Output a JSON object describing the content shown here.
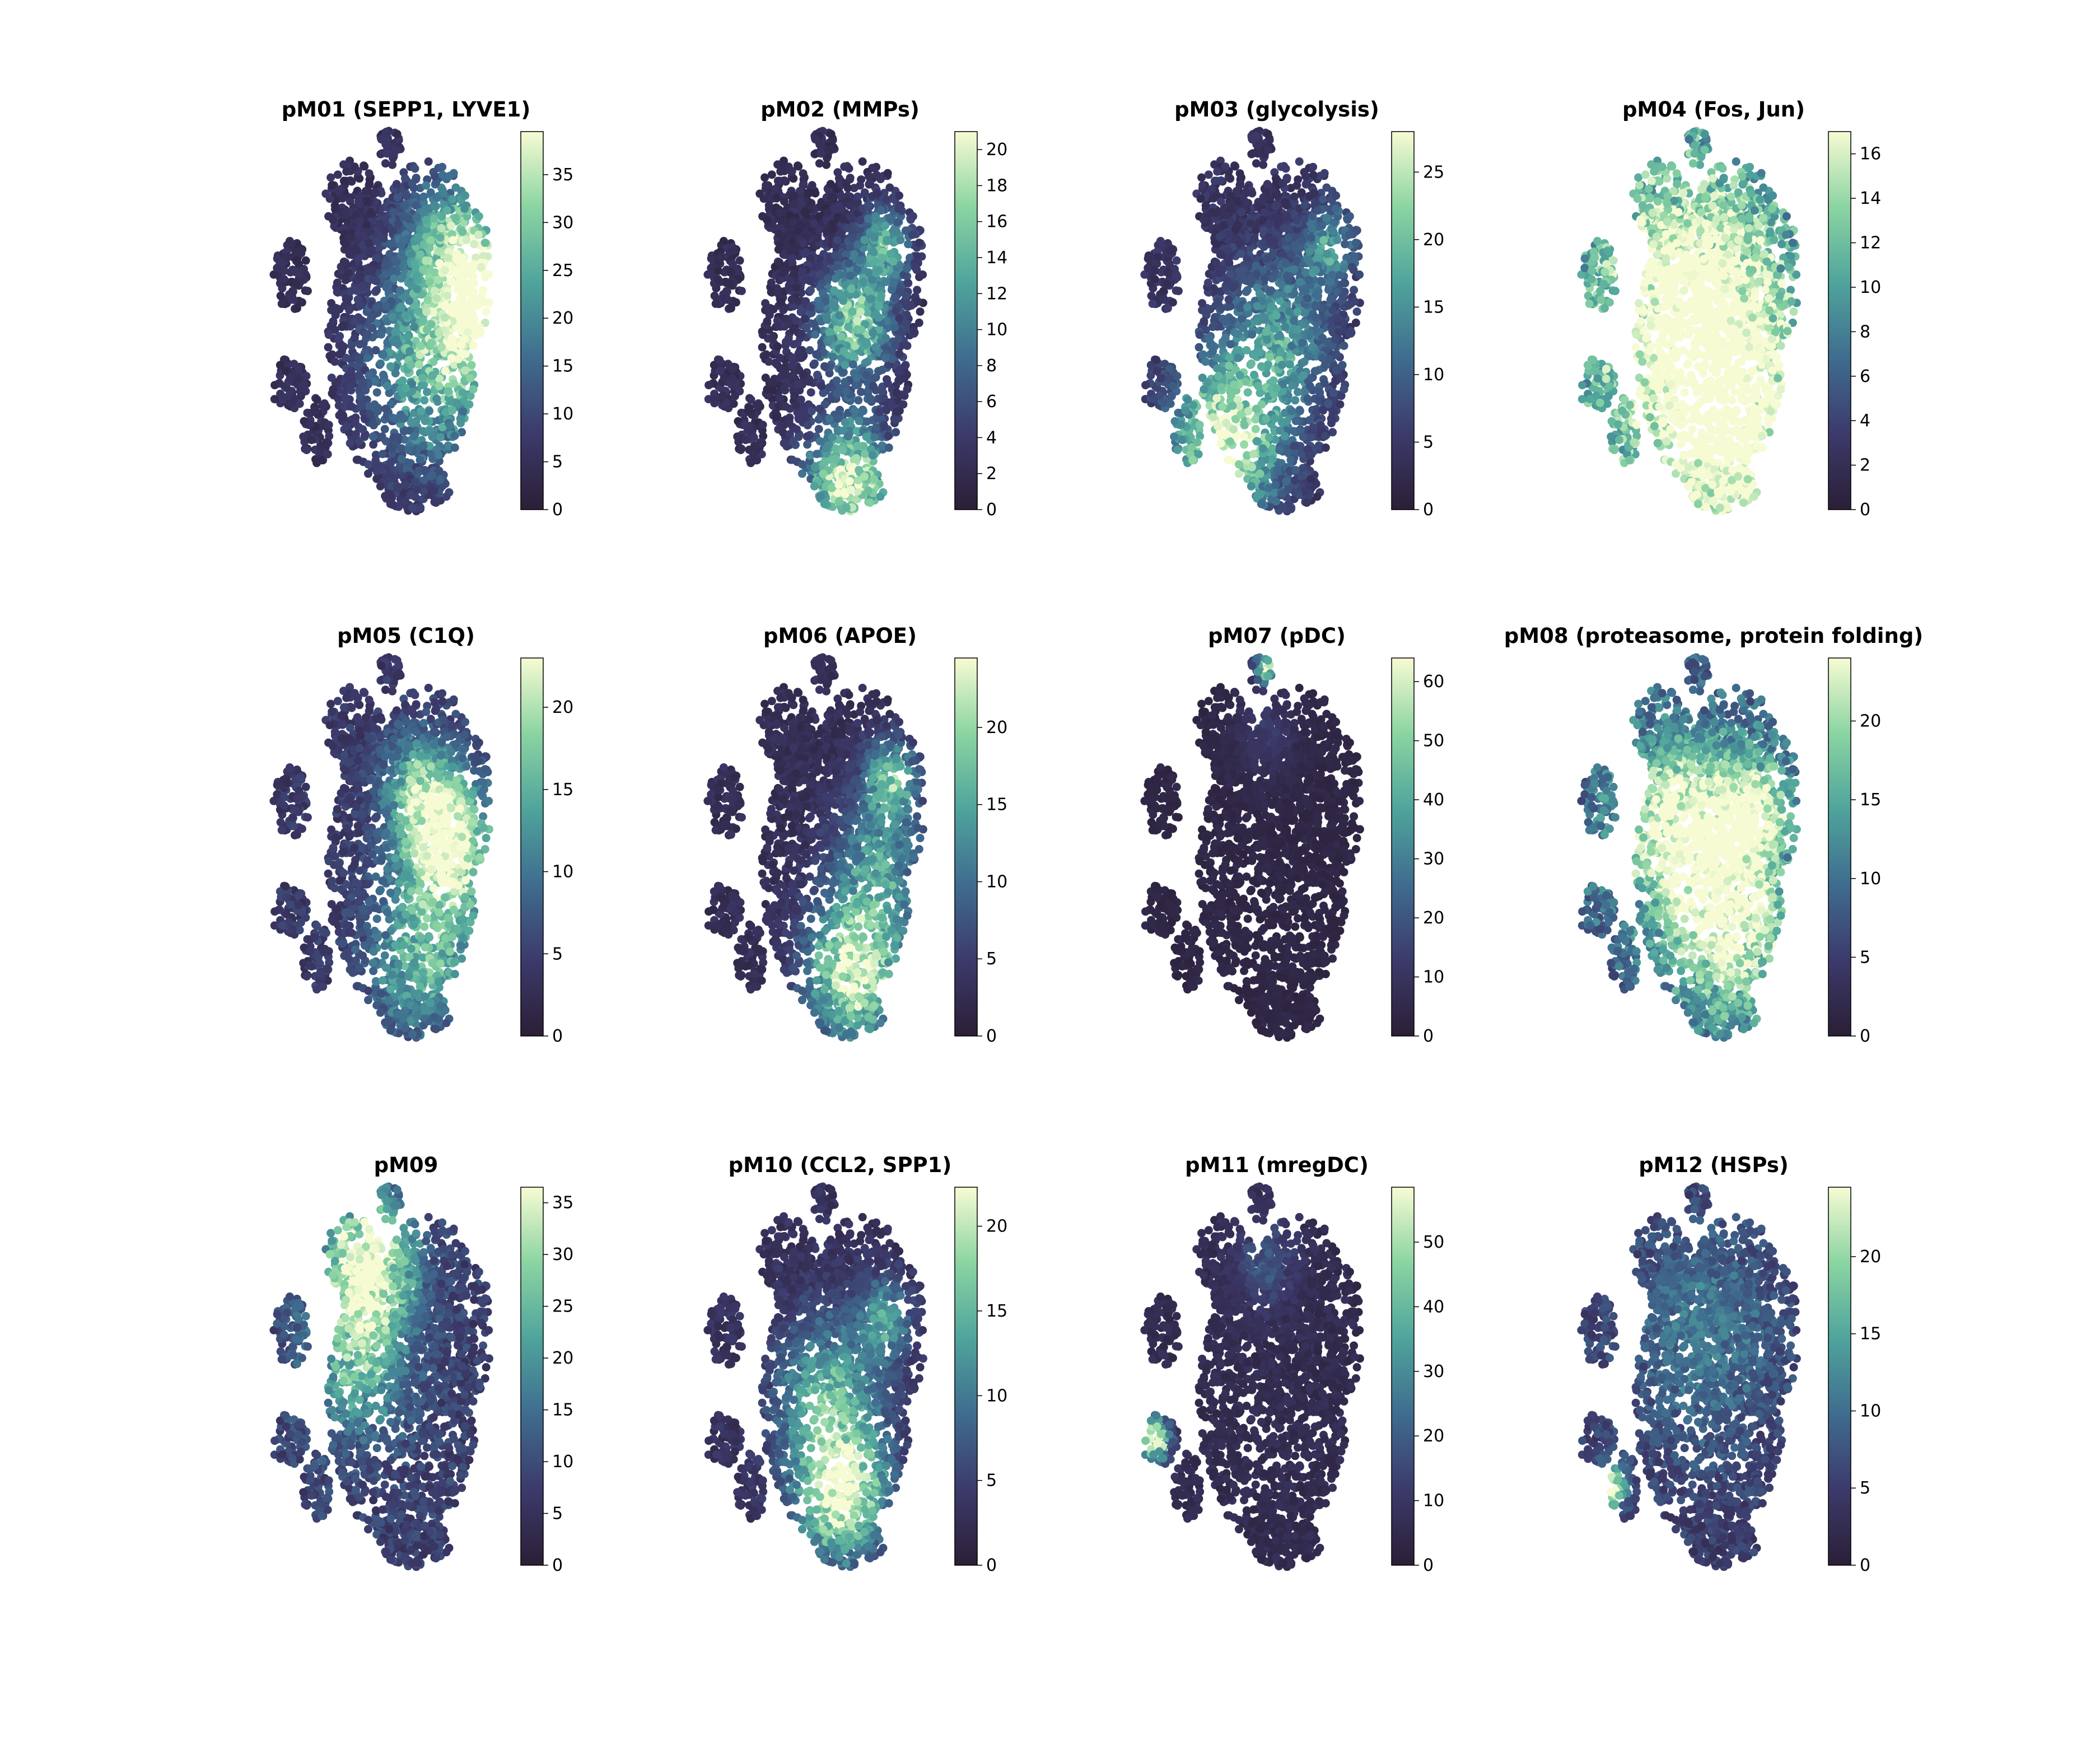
{
  "chart_data": {
    "type": "scatter",
    "layout": {
      "rows": 3,
      "cols": 4
    },
    "embedding": "shared 2-D cell embedding; each panel colours the same cells by module score",
    "colormap": {
      "name": "cubehelix-like dark-to-light",
      "stops": [
        "#2b1f36",
        "#3c3a6b",
        "#3f6c8f",
        "#4fa49c",
        "#8bd4a2",
        "#f7fbd3"
      ]
    },
    "panels": [
      {
        "title": "pM01 (SEPP1, LYVE1)",
        "vmin": 0,
        "vmax": 39.5,
        "ticks": [
          0,
          5,
          10,
          15,
          20,
          25,
          30,
          35
        ],
        "hotspots": [
          {
            "x": 0.86,
            "y": 0.42,
            "s": 0.18,
            "w": 1.0
          },
          {
            "x": 0.66,
            "y": 0.62,
            "s": 0.25,
            "w": 0.7
          },
          {
            "x": 0.7,
            "y": 0.28,
            "s": 0.18,
            "w": 0.5
          }
        ],
        "base": 0.12
      },
      {
        "title": "pM02 (MMPs)",
        "vmin": 0,
        "vmax": 21,
        "ticks": [
          0,
          2,
          4,
          6,
          8,
          10,
          12,
          14,
          16,
          18,
          20
        ],
        "hotspots": [
          {
            "x": 0.58,
            "y": 0.92,
            "s": 0.16,
            "w": 1.0
          },
          {
            "x": 0.6,
            "y": 0.5,
            "s": 0.14,
            "w": 0.8
          },
          {
            "x": 0.72,
            "y": 0.3,
            "s": 0.1,
            "w": 0.6
          }
        ],
        "base": 0.12
      },
      {
        "title": "pM03 (glycolysis)",
        "vmin": 0,
        "vmax": 28,
        "ticks": [
          0,
          5,
          10,
          15,
          20,
          25
        ],
        "hotspots": [
          {
            "x": 0.34,
            "y": 0.82,
            "s": 0.2,
            "w": 1.0
          },
          {
            "x": 0.55,
            "y": 0.55,
            "s": 0.2,
            "w": 0.5
          },
          {
            "x": 0.75,
            "y": 0.3,
            "s": 0.1,
            "w": 0.5
          }
        ],
        "base": 0.15
      },
      {
        "title": "pM04 (Fos, Jun)",
        "vmin": 0,
        "vmax": 17,
        "ticks": [
          0,
          2,
          4,
          6,
          8,
          10,
          12,
          14,
          16
        ],
        "hotspots": [
          {
            "x": 0.45,
            "y": 0.45,
            "s": 0.35,
            "w": 0.85
          },
          {
            "x": 0.6,
            "y": 0.8,
            "s": 0.3,
            "w": 0.7
          }
        ],
        "base": 0.45
      },
      {
        "title": "pM05 (C1Q)",
        "vmin": 0,
        "vmax": 23,
        "ticks": [
          0,
          5,
          10,
          15,
          20
        ],
        "hotspots": [
          {
            "x": 0.72,
            "y": 0.5,
            "s": 0.17,
            "w": 1.0
          },
          {
            "x": 0.6,
            "y": 0.78,
            "s": 0.2,
            "w": 0.6
          },
          {
            "x": 0.6,
            "y": 0.35,
            "s": 0.15,
            "w": 0.6
          }
        ],
        "base": 0.18
      },
      {
        "title": "pM06 (APOE)",
        "vmin": 0,
        "vmax": 24.5,
        "ticks": [
          0,
          5,
          10,
          15,
          20
        ],
        "hotspots": [
          {
            "x": 0.6,
            "y": 0.82,
            "s": 0.18,
            "w": 1.0
          },
          {
            "x": 0.74,
            "y": 0.32,
            "s": 0.1,
            "w": 0.7
          },
          {
            "x": 0.7,
            "y": 0.55,
            "s": 0.18,
            "w": 0.5
          }
        ],
        "base": 0.12
      },
      {
        "title": "pM07 (pDC)",
        "vmin": 0,
        "vmax": 64,
        "ticks": [
          0,
          10,
          20,
          30,
          40,
          50,
          60
        ],
        "hotspots": [
          {
            "x": 0.5,
            "y": 0.03,
            "s": 0.04,
            "w": 1.0
          },
          {
            "x": 0.5,
            "y": 0.2,
            "s": 0.12,
            "w": 0.15
          }
        ],
        "base": 0.06
      },
      {
        "title": "pM08 (proteasome, protein folding)",
        "vmin": 0,
        "vmax": 24,
        "ticks": [
          0,
          5,
          10,
          15,
          20
        ],
        "hotspots": [
          {
            "x": 0.4,
            "y": 0.45,
            "s": 0.22,
            "w": 0.9
          },
          {
            "x": 0.62,
            "y": 0.72,
            "s": 0.22,
            "w": 0.8
          },
          {
            "x": 0.7,
            "y": 0.4,
            "s": 0.15,
            "w": 0.7
          }
        ],
        "base": 0.35
      },
      {
        "title": "pM09",
        "vmin": 0,
        "vmax": 36.5,
        "ticks": [
          0,
          5,
          10,
          15,
          20,
          25,
          30,
          35
        ],
        "hotspots": [
          {
            "x": 0.4,
            "y": 0.2,
            "s": 0.17,
            "w": 1.0
          },
          {
            "x": 0.35,
            "y": 0.45,
            "s": 0.2,
            "w": 0.55
          }
        ],
        "base": 0.22
      },
      {
        "title": "pM10 (CCL2, SPP1)",
        "vmin": 0,
        "vmax": 22.3,
        "ticks": [
          0,
          5,
          10,
          15,
          20
        ],
        "hotspots": [
          {
            "x": 0.55,
            "y": 0.8,
            "s": 0.17,
            "w": 1.0
          },
          {
            "x": 0.5,
            "y": 0.55,
            "s": 0.2,
            "w": 0.6
          },
          {
            "x": 0.72,
            "y": 0.35,
            "s": 0.1,
            "w": 0.5
          }
        ],
        "base": 0.14
      },
      {
        "title": "pM11 (mregDC)",
        "vmin": 0,
        "vmax": 58.5,
        "ticks": [
          0,
          10,
          20,
          30,
          40,
          50
        ],
        "hotspots": [
          {
            "x": 0.07,
            "y": 0.66,
            "s": 0.06,
            "w": 1.0
          },
          {
            "x": 0.5,
            "y": 0.2,
            "s": 0.12,
            "w": 0.25
          }
        ],
        "base": 0.1
      },
      {
        "title": "pM12 (HSPs)",
        "vmin": 0,
        "vmax": 24.5,
        "ticks": [
          0,
          5,
          10,
          15,
          20
        ],
        "hotspots": [
          {
            "x": 0.14,
            "y": 0.78,
            "s": 0.06,
            "w": 1.0
          },
          {
            "x": 0.5,
            "y": 0.4,
            "s": 0.3,
            "w": 0.3
          }
        ],
        "base": 0.2
      }
    ]
  }
}
